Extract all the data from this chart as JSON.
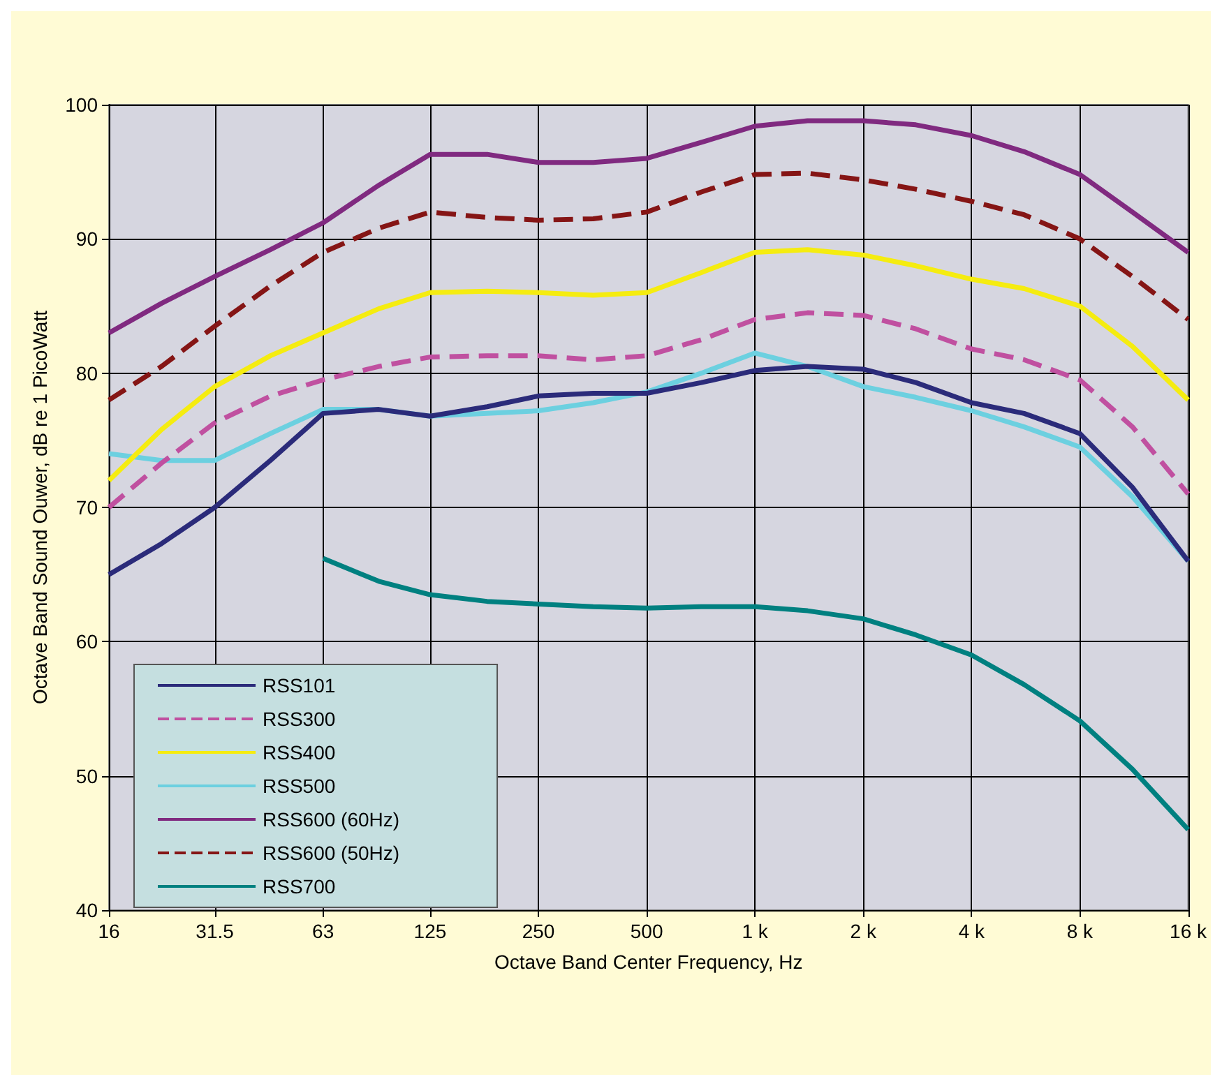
{
  "chart_data": {
    "type": "line",
    "xlabel": "Octave Band Center Frequency, Hz",
    "ylabel": "Octave Band Sound Ouwer, dB re 1 PicoWatt",
    "x": [
      16,
      22.4,
      31.5,
      45,
      63,
      90,
      125,
      180,
      250,
      355,
      500,
      710,
      1000,
      1400,
      2000,
      2800,
      4000,
      5600,
      8000,
      11200,
      16000
    ],
    "xlim": [
      16,
      16000
    ],
    "xticks": [
      16,
      {
        "value": 31.5,
        "label": "31.5"
      },
      63,
      125,
      250,
      500,
      {
        "value": 1000,
        "label": "1 k"
      },
      {
        "value": 2000,
        "label": "2 k"
      },
      {
        "value": 4000,
        "label": "4 k"
      },
      {
        "value": 8000,
        "label": "8 k"
      },
      {
        "value": 16000,
        "label": "16 k"
      }
    ],
    "log": "x",
    "ylim": [
      40,
      100
    ],
    "yticks": [
      40,
      50,
      60,
      70,
      80,
      90,
      100
    ],
    "grid": true,
    "legend": "bottom left",
    "marker": "none",
    "series": [
      {
        "name": "RSS101",
        "color": "#2b2b7a",
        "line_style": "solid",
        "values": [
          65,
          67.3,
          70,
          73.5,
          77,
          77.3,
          76.8,
          77.5,
          78.3,
          78.5,
          78.5,
          79.3,
          80.2,
          80.5,
          80.3,
          79.3,
          77.8,
          77,
          75.5,
          71.5,
          66
        ]
      },
      {
        "name": "RSS300",
        "color": "#c050a0",
        "line_style": "dashed",
        "values": [
          70,
          73.3,
          76.3,
          78.3,
          79.5,
          80.5,
          81.2,
          81.3,
          81.3,
          81,
          81.3,
          82.5,
          84,
          84.5,
          84.3,
          83.3,
          81.8,
          81,
          79.5,
          76,
          71
        ]
      },
      {
        "name": "RSS400",
        "color": "#f5ec10",
        "line_style": "solid",
        "values": [
          72,
          75.8,
          79,
          81.3,
          83,
          84.8,
          86,
          86.1,
          86,
          85.8,
          86,
          87.5,
          89,
          89.2,
          88.8,
          88,
          87,
          86.3,
          85,
          82,
          78
        ]
      },
      {
        "name": "RSS500",
        "color": "#6cd0e0",
        "line_style": "solid",
        "values": [
          74,
          73.5,
          73.5,
          75.5,
          77.3,
          77.3,
          76.8,
          77,
          77.2,
          77.8,
          78.6,
          80,
          81.5,
          80.5,
          79,
          78.2,
          77.2,
          76,
          74.5,
          70.8,
          66
        ]
      },
      {
        "name": "RSS600 (60Hz)",
        "color": "#802a80",
        "line_style": "solid",
        "values": [
          83,
          85.2,
          87.2,
          89.2,
          91.2,
          94,
          96.3,
          96.3,
          95.7,
          95.7,
          96,
          97.2,
          98.4,
          98.8,
          98.8,
          98.5,
          97.7,
          96.5,
          94.8,
          92,
          89
        ]
      },
      {
        "name": "RSS600 (50Hz)",
        "color": "#851515",
        "line_style": "dashed",
        "values": [
          78,
          80.5,
          83.5,
          86.5,
          89,
          90.8,
          92,
          91.6,
          91.4,
          91.5,
          92,
          93.5,
          94.8,
          94.9,
          94.4,
          93.7,
          92.8,
          91.8,
          90,
          87.2,
          84
        ]
      },
      {
        "name": "RSS700",
        "color": "#008080",
        "line_style": "solid",
        "values": [
          null,
          null,
          null,
          null,
          66.2,
          64.5,
          63.5,
          63,
          62.8,
          62.6,
          62.5,
          62.6,
          62.6,
          62.3,
          61.7,
          60.5,
          59,
          56.8,
          54.1,
          50.5,
          46
        ]
      }
    ]
  }
}
